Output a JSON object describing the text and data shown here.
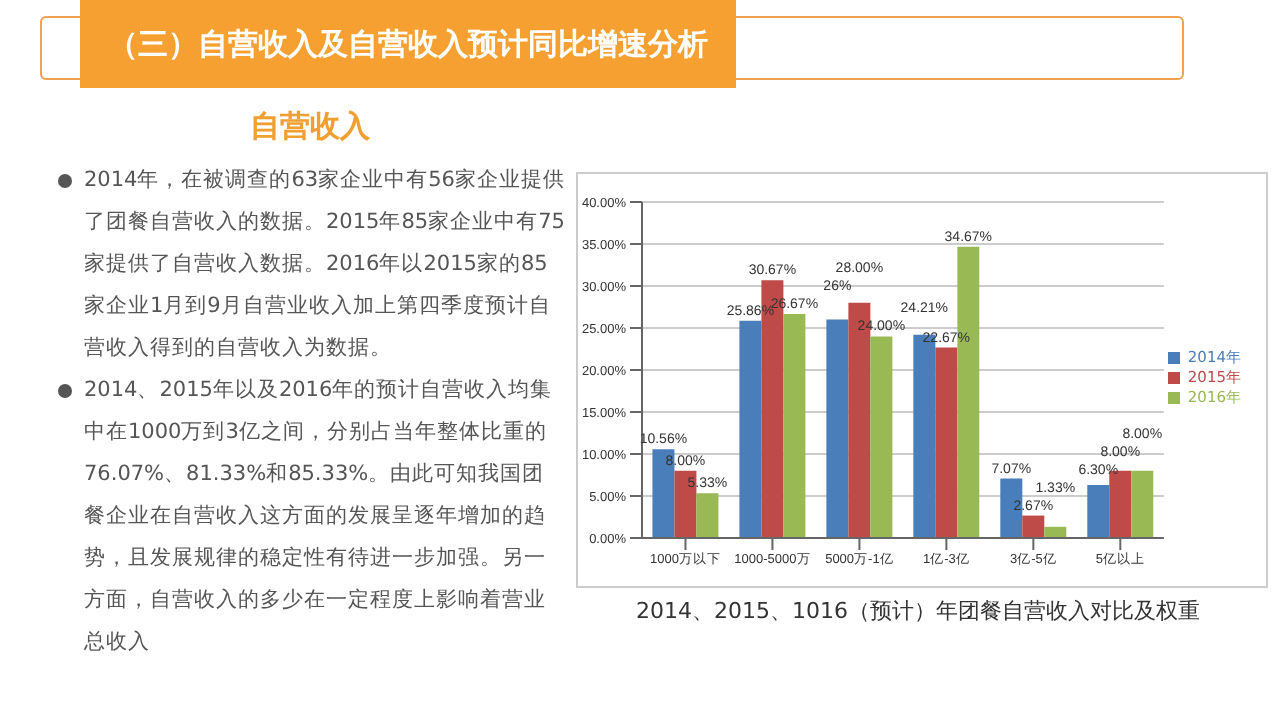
{
  "chart_data": {
    "type": "bar",
    "title": "（三）自营收入及自营收入预计同比增速分析",
    "subtitle": "自营收入",
    "annotations": [
      "2014年，在被调查的63家企业中有56家企业提供了团餐自营收入的数据。2015年85家企业中有75家提供了自营收入数据。2016年以2015家的85家企业1月到9月自营业收入加上第四季度预计自营收入得到的自营收入为数据。",
      "2014、2015年以及2016年的预计自营收入均集中在1000万到3亿之间，分别占当年整体比重的76.07%、81.33%和85.33%。由此可知我国团餐企业在自营收入这方面的发展呈逐年增加的趋势，且发展规律的稳定性有待进一步加强。另一方面，自营收入的多少在一定程度上影响着营业总收入",
      "2014、2015、1016（预计）年团餐自营收入对比及权重"
    ],
    "categories": [
      "1000万以下",
      "1000-5000万",
      "5000万-1亿",
      "1亿-3亿",
      "3亿-5亿",
      "5亿以上"
    ],
    "series": [
      {
        "name": "2014年",
        "color": "#4a7ebb",
        "values": [
          10.56,
          25.86,
          26,
          24.21,
          7.07,
          6.3
        ],
        "value_labels": [
          "10.56%",
          "25.86%",
          "26%",
          "24.21%",
          "7.07%",
          "6.30%"
        ]
      },
      {
        "name": "2015年",
        "color": "#be4b48",
        "values": [
          8,
          30.67,
          28,
          22.67,
          2.67,
          8
        ],
        "value_labels": [
          "8.00%",
          "30.67%",
          "28.00%",
          "22.67%",
          "2.67%",
          "8.00%"
        ]
      },
      {
        "name": "2016年",
        "color": "#98b954",
        "values": [
          5.33,
          26.67,
          24,
          34.67,
          1.33,
          8
        ],
        "value_labels": [
          "5.33%",
          "26.67%",
          "24.00%",
          "34.67%",
          "1.33%",
          "8.00%"
        ]
      }
    ],
    "ylim": [
      0,
      40
    ],
    "yticks": [
      {
        "value": 0,
        "label": "0.00%"
      },
      {
        "value": 5,
        "label": "5.00%"
      },
      {
        "value": 10,
        "label": "10.00%"
      },
      {
        "value": 15,
        "label": "15.00%"
      },
      {
        "value": 20,
        "label": "20.00%"
      },
      {
        "value": 25,
        "label": "25.00%"
      },
      {
        "value": 30,
        "label": "30.00%"
      },
      {
        "value": 35,
        "label": "35.00%"
      },
      {
        "value": 40,
        "label": "40.00%"
      }
    ],
    "grid": "y",
    "legend": "right"
  }
}
